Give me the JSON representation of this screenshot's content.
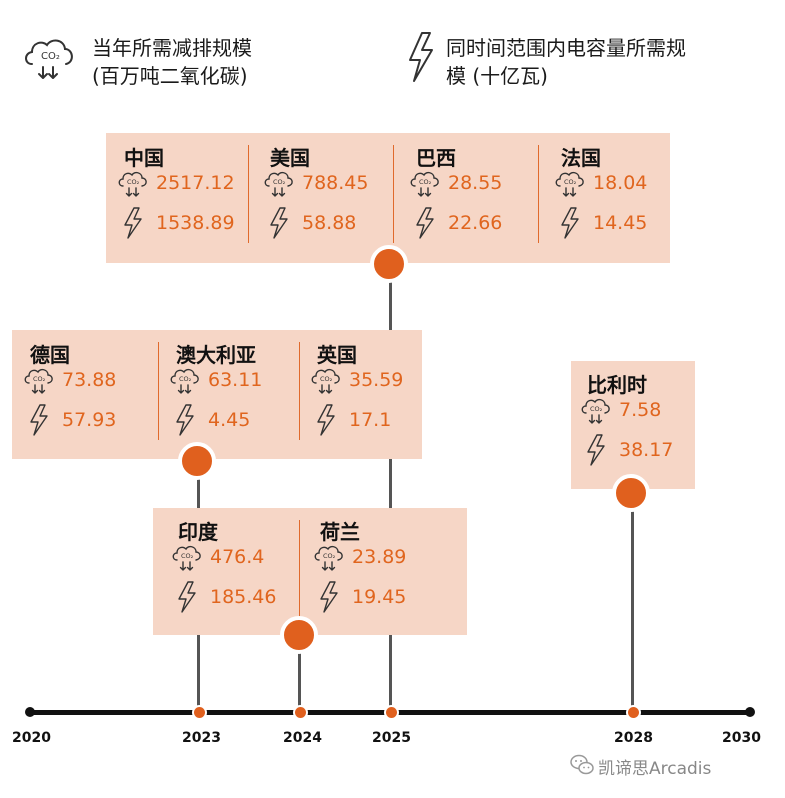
{
  "legend": {
    "co2_label": "当年所需减排规模 (百万吨二氧化碳)",
    "co2_line1": "当年所需减排规模",
    "co2_line2": "(百万吨二氧化碳)",
    "power_line1": "同时间范围内电容量所需规",
    "power_line2": "模 (十亿瓦)",
    "co2_icon": "co2-cloud-icon",
    "power_icon": "lightning-icon"
  },
  "groups": [
    {
      "id": "g2025a",
      "year": "2025",
      "countries": [
        {
          "name": "中国",
          "co2": "2517.12",
          "power": "1538.89"
        },
        {
          "name": "美国",
          "co2": "788.45",
          "power": "58.88"
        },
        {
          "name": "巴西",
          "co2": "28.55",
          "power": "22.66"
        },
        {
          "name": "法国",
          "co2": "18.04",
          "power": "14.45"
        }
      ]
    },
    {
      "id": "g2023a",
      "year": "2023",
      "countries": [
        {
          "name": "德国",
          "co2": "73.88",
          "power": "57.93"
        },
        {
          "name": "澳大利亚",
          "co2": "63.11",
          "power": "4.45"
        },
        {
          "name": "英国",
          "co2": "35.59",
          "power": "17.1"
        }
      ]
    },
    {
      "id": "g2028",
      "year": "2028",
      "countries": [
        {
          "name": "比利时",
          "co2": "7.58",
          "power": "38.17"
        }
      ]
    },
    {
      "id": "g2024",
      "year": "2024",
      "countries": [
        {
          "name": "印度",
          "co2": "476.4",
          "power": "185.46"
        },
        {
          "name": "荷兰",
          "co2": "23.89",
          "power": "19.45"
        }
      ]
    }
  ],
  "axis": {
    "years": [
      "2020",
      "2023",
      "2024",
      "2025",
      "2028",
      "2030"
    ]
  },
  "colors": {
    "accent": "#e0601e",
    "box": "#f6d6c6",
    "axis": "#111111"
  },
  "watermark": "凯谛思Arcadis"
}
